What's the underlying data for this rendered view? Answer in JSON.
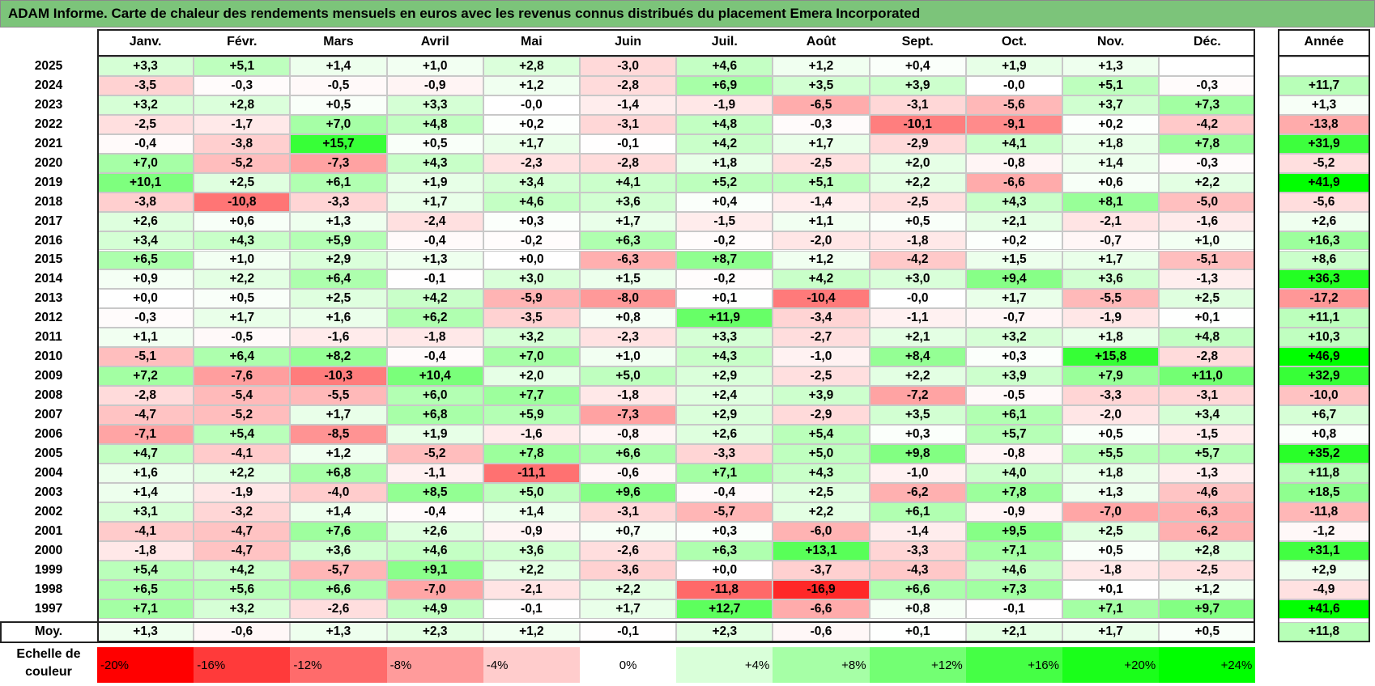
{
  "title": "ADAM Informe. Carte de chaleur des rendements mensuels en euros avec les revenus connus distribués du placement Emera Incorporated",
  "chart_data": {
    "type": "heatmap",
    "columns": [
      "Janv.",
      "Févr.",
      "Mars",
      "Avril",
      "Mai",
      "Juin",
      "Juil.",
      "Août",
      "Sept.",
      "Oct.",
      "Nov.",
      "Déc."
    ],
    "year_column": "Année",
    "avg_label": "Moy.",
    "rows": [
      {
        "year": "2025",
        "m": [
          3.3,
          5.1,
          1.4,
          1.0,
          2.8,
          -3.0,
          4.6,
          1.2,
          0.4,
          1.9,
          1.3,
          null
        ],
        "t": [
          "+3,3",
          "+5,1",
          "+1,4",
          "+1,0",
          "+2,8",
          "-3,0",
          "+4,6",
          "+1,2",
          "+0,4",
          "+1,9",
          "+1,3",
          ""
        ],
        "y": null,
        "ty": ""
      },
      {
        "year": "2024",
        "m": [
          -3.5,
          -0.3,
          -0.5,
          -0.9,
          1.2,
          -2.8,
          6.9,
          3.5,
          3.9,
          -0.0,
          5.1,
          -0.3
        ],
        "t": [
          "-3,5",
          "-0,3",
          "-0,5",
          "-0,9",
          "+1,2",
          "-2,8",
          "+6,9",
          "+3,5",
          "+3,9",
          "-0,0",
          "+5,1",
          "-0,3"
        ],
        "y": 11.7,
        "ty": "+11,7"
      },
      {
        "year": "2023",
        "m": [
          3.2,
          2.8,
          0.5,
          3.3,
          -0.0,
          -1.4,
          -1.9,
          -6.5,
          -3.1,
          -5.6,
          3.7,
          7.3
        ],
        "t": [
          "+3,2",
          "+2,8",
          "+0,5",
          "+3,3",
          "-0,0",
          "-1,4",
          "-1,9",
          "-6,5",
          "-3,1",
          "-5,6",
          "+3,7",
          "+7,3"
        ],
        "y": 1.3,
        "ty": "+1,3"
      },
      {
        "year": "2022",
        "m": [
          -2.5,
          -1.7,
          7.0,
          4.8,
          0.2,
          -3.1,
          4.8,
          -0.3,
          -10.1,
          -9.1,
          0.2,
          -4.2
        ],
        "t": [
          "-2,5",
          "-1,7",
          "+7,0",
          "+4,8",
          "+0,2",
          "-3,1",
          "+4,8",
          "-0,3",
          "-10,1",
          "-9,1",
          "+0,2",
          "-4,2"
        ],
        "y": -13.8,
        "ty": "-13,8"
      },
      {
        "year": "2021",
        "m": [
          -0.4,
          -3.8,
          15.7,
          0.5,
          1.7,
          -0.1,
          4.2,
          1.7,
          -2.9,
          4.1,
          1.8,
          7.8
        ],
        "t": [
          "-0,4",
          "-3,8",
          "+15,7",
          "+0,5",
          "+1,7",
          "-0,1",
          "+4,2",
          "+1,7",
          "-2,9",
          "+4,1",
          "+1,8",
          "+7,8"
        ],
        "y": 31.9,
        "ty": "+31,9"
      },
      {
        "year": "2020",
        "m": [
          7.0,
          -5.2,
          -7.3,
          4.3,
          -2.3,
          -2.8,
          1.8,
          -2.5,
          2.0,
          -0.8,
          1.4,
          -0.3
        ],
        "t": [
          "+7,0",
          "-5,2",
          "-7,3",
          "+4,3",
          "-2,3",
          "-2,8",
          "+1,8",
          "-2,5",
          "+2,0",
          "-0,8",
          "+1,4",
          "-0,3"
        ],
        "y": -5.2,
        "ty": "-5,2"
      },
      {
        "year": "2019",
        "m": [
          10.1,
          2.5,
          6.1,
          1.9,
          3.4,
          4.1,
          5.2,
          5.1,
          2.2,
          -6.6,
          0.6,
          2.2
        ],
        "t": [
          "+10,1",
          "+2,5",
          "+6,1",
          "+1,9",
          "+3,4",
          "+4,1",
          "+5,2",
          "+5,1",
          "+2,2",
          "-6,6",
          "+0,6",
          "+2,2"
        ],
        "y": 41.9,
        "ty": "+41,9"
      },
      {
        "year": "2018",
        "m": [
          -3.8,
          -10.8,
          -3.3,
          1.7,
          4.6,
          3.6,
          0.4,
          -1.4,
          -2.5,
          4.3,
          8.1,
          -5.0
        ],
        "t": [
          "-3,8",
          "-10,8",
          "-3,3",
          "+1,7",
          "+4,6",
          "+3,6",
          "+0,4",
          "-1,4",
          "-2,5",
          "+4,3",
          "+8,1",
          "-5,0"
        ],
        "y": -5.6,
        "ty": "-5,6"
      },
      {
        "year": "2017",
        "m": [
          2.6,
          0.6,
          1.3,
          -2.4,
          0.3,
          1.7,
          -1.5,
          1.1,
          0.5,
          2.1,
          -2.1,
          -1.6
        ],
        "t": [
          "+2,6",
          "+0,6",
          "+1,3",
          "-2,4",
          "+0,3",
          "+1,7",
          "-1,5",
          "+1,1",
          "+0,5",
          "+2,1",
          "-2,1",
          "-1,6"
        ],
        "y": 2.6,
        "ty": "+2,6"
      },
      {
        "year": "2016",
        "m": [
          3.4,
          4.3,
          5.9,
          -0.4,
          -0.2,
          6.3,
          -0.2,
          -2.0,
          -1.8,
          0.2,
          -0.7,
          1.0
        ],
        "t": [
          "+3,4",
          "+4,3",
          "+5,9",
          "-0,4",
          "-0,2",
          "+6,3",
          "-0,2",
          "-2,0",
          "-1,8",
          "+0,2",
          "-0,7",
          "+1,0"
        ],
        "y": 16.3,
        "ty": "+16,3"
      },
      {
        "year": "2015",
        "m": [
          6.5,
          1.0,
          2.9,
          1.3,
          0.0,
          -6.3,
          8.7,
          1.2,
          -4.2,
          1.5,
          1.7,
          -5.1
        ],
        "t": [
          "+6,5",
          "+1,0",
          "+2,9",
          "+1,3",
          "+0,0",
          "-6,3",
          "+8,7",
          "+1,2",
          "-4,2",
          "+1,5",
          "+1,7",
          "-5,1"
        ],
        "y": 8.6,
        "ty": "+8,6"
      },
      {
        "year": "2014",
        "m": [
          0.9,
          2.2,
          6.4,
          -0.1,
          3.0,
          1.5,
          -0.2,
          4.2,
          3.0,
          9.4,
          3.6,
          -1.3
        ],
        "t": [
          "+0,9",
          "+2,2",
          "+6,4",
          "-0,1",
          "+3,0",
          "+1,5",
          "-0,2",
          "+4,2",
          "+3,0",
          "+9,4",
          "+3,6",
          "-1,3"
        ],
        "y": 36.3,
        "ty": "+36,3"
      },
      {
        "year": "2013",
        "m": [
          0.0,
          0.5,
          2.5,
          4.2,
          -5.9,
          -8.0,
          0.1,
          -10.4,
          -0.0,
          1.7,
          -5.5,
          2.5
        ],
        "t": [
          "+0,0",
          "+0,5",
          "+2,5",
          "+4,2",
          "-5,9",
          "-8,0",
          "+0,1",
          "-10,4",
          "-0,0",
          "+1,7",
          "-5,5",
          "+2,5"
        ],
        "y": -17.2,
        "ty": "-17,2"
      },
      {
        "year": "2012",
        "m": [
          -0.3,
          1.7,
          1.6,
          6.2,
          -3.5,
          0.8,
          11.9,
          -3.4,
          -1.1,
          -0.7,
          -1.9,
          0.1
        ],
        "t": [
          "-0,3",
          "+1,7",
          "+1,6",
          "+6,2",
          "-3,5",
          "+0,8",
          "+11,9",
          "-3,4",
          "-1,1",
          "-0,7",
          "-1,9",
          "+0,1"
        ],
        "y": 11.1,
        "ty": "+11,1"
      },
      {
        "year": "2011",
        "m": [
          1.1,
          -0.5,
          -1.6,
          -1.8,
          3.2,
          -2.3,
          3.3,
          -2.7,
          2.1,
          3.2,
          1.8,
          4.8
        ],
        "t": [
          "+1,1",
          "-0,5",
          "-1,6",
          "-1,8",
          "+3,2",
          "-2,3",
          "+3,3",
          "-2,7",
          "+2,1",
          "+3,2",
          "+1,8",
          "+4,8"
        ],
        "y": 10.3,
        "ty": "+10,3"
      },
      {
        "year": "2010",
        "m": [
          -5.1,
          6.4,
          8.2,
          -0.4,
          7.0,
          1.0,
          4.3,
          -1.0,
          8.4,
          0.3,
          15.8,
          -2.8
        ],
        "t": [
          "-5,1",
          "+6,4",
          "+8,2",
          "-0,4",
          "+7,0",
          "+1,0",
          "+4,3",
          "-1,0",
          "+8,4",
          "+0,3",
          "+15,8",
          "-2,8"
        ],
        "y": 46.9,
        "ty": "+46,9"
      },
      {
        "year": "2009",
        "m": [
          7.2,
          -7.6,
          -10.3,
          10.4,
          2.0,
          5.0,
          2.9,
          -2.5,
          2.2,
          3.9,
          7.9,
          11.0
        ],
        "t": [
          "+7,2",
          "-7,6",
          "-10,3",
          "+10,4",
          "+2,0",
          "+5,0",
          "+2,9",
          "-2,5",
          "+2,2",
          "+3,9",
          "+7,9",
          "+11,0"
        ],
        "y": 32.9,
        "ty": "+32,9"
      },
      {
        "year": "2008",
        "m": [
          -2.8,
          -5.4,
          -5.5,
          6.0,
          7.7,
          -1.8,
          2.4,
          3.9,
          -7.2,
          -0.5,
          -3.3,
          -3.1
        ],
        "t": [
          "-2,8",
          "-5,4",
          "-5,5",
          "+6,0",
          "+7,7",
          "-1,8",
          "+2,4",
          "+3,9",
          "-7,2",
          "-0,5",
          "-3,3",
          "-3,1"
        ],
        "y": -10.0,
        "ty": "-10,0"
      },
      {
        "year": "2007",
        "m": [
          -4.7,
          -5.2,
          1.7,
          6.8,
          5.9,
          -7.3,
          2.9,
          -2.9,
          3.5,
          6.1,
          -2.0,
          3.4
        ],
        "t": [
          "-4,7",
          "-5,2",
          "+1,7",
          "+6,8",
          "+5,9",
          "-7,3",
          "+2,9",
          "-2,9",
          "+3,5",
          "+6,1",
          "-2,0",
          "+3,4"
        ],
        "y": 6.7,
        "ty": "+6,7"
      },
      {
        "year": "2006",
        "m": [
          -7.1,
          5.4,
          -8.5,
          1.9,
          -1.6,
          -0.8,
          2.6,
          5.4,
          0.3,
          5.7,
          0.5,
          -1.5
        ],
        "t": [
          "-7,1",
          "+5,4",
          "-8,5",
          "+1,9",
          "-1,6",
          "-0,8",
          "+2,6",
          "+5,4",
          "+0,3",
          "+5,7",
          "+0,5",
          "-1,5"
        ],
        "y": 0.8,
        "ty": "+0,8"
      },
      {
        "year": "2005",
        "m": [
          4.7,
          -4.1,
          1.2,
          -5.2,
          7.8,
          6.6,
          -3.3,
          5.0,
          9.8,
          -0.8,
          5.5,
          5.7
        ],
        "t": [
          "+4,7",
          "-4,1",
          "+1,2",
          "-5,2",
          "+7,8",
          "+6,6",
          "-3,3",
          "+5,0",
          "+9,8",
          "-0,8",
          "+5,5",
          "+5,7"
        ],
        "y": 35.2,
        "ty": "+35,2"
      },
      {
        "year": "2004",
        "m": [
          1.6,
          2.2,
          6.8,
          -1.1,
          -11.1,
          -0.6,
          7.1,
          4.3,
          -1.0,
          4.0,
          1.8,
          -1.3
        ],
        "t": [
          "+1,6",
          "+2,2",
          "+6,8",
          "-1,1",
          "-11,1",
          "-0,6",
          "+7,1",
          "+4,3",
          "-1,0",
          "+4,0",
          "+1,8",
          "-1,3"
        ],
        "y": 11.8,
        "ty": "+11,8"
      },
      {
        "year": "2003",
        "m": [
          1.4,
          -1.9,
          -4.0,
          8.5,
          5.0,
          9.6,
          -0.4,
          2.5,
          -6.2,
          7.8,
          1.3,
          -4.6
        ],
        "t": [
          "+1,4",
          "-1,9",
          "-4,0",
          "+8,5",
          "+5,0",
          "+9,6",
          "-0,4",
          "+2,5",
          "-6,2",
          "+7,8",
          "+1,3",
          "-4,6"
        ],
        "y": 18.5,
        "ty": "+18,5"
      },
      {
        "year": "2002",
        "m": [
          3.1,
          -3.2,
          1.4,
          -0.4,
          1.4,
          -3.1,
          -5.7,
          2.2,
          6.1,
          -0.9,
          -7.0,
          -6.3
        ],
        "t": [
          "+3,1",
          "-3,2",
          "+1,4",
          "-0,4",
          "+1,4",
          "-3,1",
          "-5,7",
          "+2,2",
          "+6,1",
          "-0,9",
          "-7,0",
          "-6,3"
        ],
        "y": -11.8,
        "ty": "-11,8"
      },
      {
        "year": "2001",
        "m": [
          -4.1,
          -4.7,
          7.6,
          2.6,
          -0.9,
          0.7,
          0.3,
          -6.0,
          -1.4,
          9.5,
          2.5,
          -6.2
        ],
        "t": [
          "-4,1",
          "-4,7",
          "+7,6",
          "+2,6",
          "-0,9",
          "+0,7",
          "+0,3",
          "-6,0",
          "-1,4",
          "+9,5",
          "+2,5",
          "-6,2"
        ],
        "y": -1.2,
        "ty": "-1,2"
      },
      {
        "year": "2000",
        "m": [
          -1.8,
          -4.7,
          3.6,
          4.6,
          3.6,
          -2.6,
          6.3,
          13.1,
          -3.3,
          7.1,
          0.5,
          2.8
        ],
        "t": [
          "-1,8",
          "-4,7",
          "+3,6",
          "+4,6",
          "+3,6",
          "-2,6",
          "+6,3",
          "+13,1",
          "-3,3",
          "+7,1",
          "+0,5",
          "+2,8"
        ],
        "y": 31.1,
        "ty": "+31,1"
      },
      {
        "year": "1999",
        "m": [
          5.4,
          4.2,
          -5.7,
          9.1,
          2.2,
          -3.6,
          0.0,
          -3.7,
          -4.3,
          4.6,
          -1.8,
          -2.5
        ],
        "t": [
          "+5,4",
          "+4,2",
          "-5,7",
          "+9,1",
          "+2,2",
          "-3,6",
          "+0,0",
          "-3,7",
          "-4,3",
          "+4,6",
          "-1,8",
          "-2,5"
        ],
        "y": 2.9,
        "ty": "+2,9"
      },
      {
        "year": "1998",
        "m": [
          6.5,
          5.6,
          6.6,
          -7.0,
          -2.1,
          2.2,
          -11.8,
          -16.9,
          6.6,
          7.3,
          0.1,
          1.2
        ],
        "t": [
          "+6,5",
          "+5,6",
          "+6,6",
          "-7,0",
          "-2,1",
          "+2,2",
          "-11,8",
          "-16,9",
          "+6,6",
          "+7,3",
          "+0,1",
          "+1,2"
        ],
        "y": -4.9,
        "ty": "-4,9"
      },
      {
        "year": "1997",
        "m": [
          7.1,
          3.2,
          -2.6,
          4.9,
          -0.1,
          1.7,
          12.7,
          -6.6,
          0.8,
          -0.1,
          7.1,
          9.7
        ],
        "t": [
          "+7,1",
          "+3,2",
          "-2,6",
          "+4,9",
          "-0,1",
          "+1,7",
          "+12,7",
          "-6,6",
          "+0,8",
          "-0,1",
          "+7,1",
          "+9,7"
        ],
        "y": 41.6,
        "ty": "+41,6"
      }
    ],
    "avg": {
      "m": [
        1.3,
        -0.6,
        1.3,
        2.3,
        1.2,
        -0.1,
        2.3,
        -0.6,
        0.1,
        2.1,
        1.7,
        0.5
      ],
      "t": [
        "+1,3",
        "-0,6",
        "+1,3",
        "+2,3",
        "+1,2",
        "-0,1",
        "+2,3",
        "-0,6",
        "+0,1",
        "+2,1",
        "+1,7",
        "+0,5"
      ],
      "y": 11.8,
      "ty": "+11,8"
    },
    "scale": {
      "label_line1": "Echelle de",
      "label_line2": "couleur",
      "stops": [
        {
          "label": "-20%",
          "value": -20,
          "color": "#ff0000"
        },
        {
          "label": "-16%",
          "value": -16,
          "color": "#ff3a3a"
        },
        {
          "label": "-12%",
          "value": -12,
          "color": "#ff6b6b"
        },
        {
          "label": "-8%",
          "value": -8,
          "color": "#ff9b9b"
        },
        {
          "label": "-4%",
          "value": -4,
          "color": "#ffcccc"
        },
        {
          "label": "0%",
          "value": 0,
          "color": "#ffffff"
        },
        {
          "label": "+4%",
          "value": 4,
          "color": "#d9ffd9"
        },
        {
          "label": "+8%",
          "value": 8,
          "color": "#a6ffa6"
        },
        {
          "label": "+12%",
          "value": 12,
          "color": "#73ff73"
        },
        {
          "label": "+16%",
          "value": 16,
          "color": "#45ff45"
        },
        {
          "label": "+20%",
          "value": 20,
          "color": "#1aff1a"
        },
        {
          "label": "+24%",
          "value": 24,
          "color": "#00ff00"
        }
      ]
    }
  }
}
